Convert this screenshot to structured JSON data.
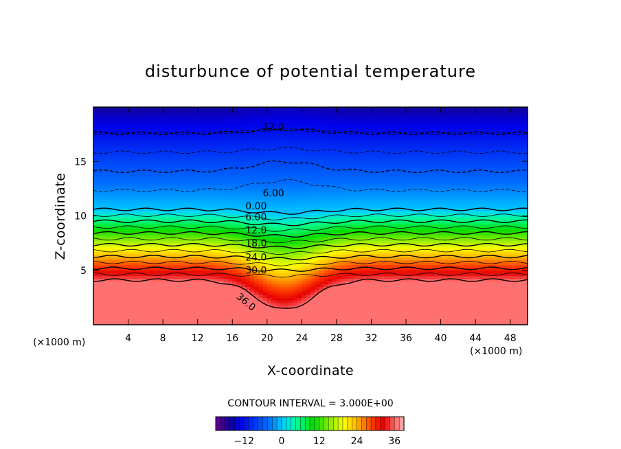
{
  "chart_data": {
    "type": "heatmap",
    "title": "disturbunce of potential temperature",
    "xlabel": "X-coordinate",
    "ylabel": "Z-coordinate",
    "x_unit": "(×1000 m)",
    "y_unit": "(×1000 m)",
    "xlim": [
      0,
      50
    ],
    "ylim": [
      0,
      20
    ],
    "x_ticks": [
      4,
      8,
      12,
      16,
      20,
      24,
      28,
      32,
      36,
      40,
      44,
      48
    ],
    "y_ticks": [
      5,
      10,
      15
    ],
    "contour_interval_text": "CONTOUR INTERVAL = 3.000E+00",
    "colorbar": {
      "min": -21,
      "max": 39,
      "ticks": [
        -12,
        0,
        12,
        24,
        36
      ],
      "colormap": "rainbow"
    },
    "contour_labels": [
      {
        "text": "12.0",
        "value": -12,
        "x": 19.5,
        "z": 17.9
      },
      {
        "text": "6.00",
        "value": -6,
        "x": 19.5,
        "z": 11.8
      },
      {
        "text": "0.00",
        "value": 0,
        "x": 17.5,
        "z": 10.6
      },
      {
        "text": "6.00",
        "value": 6,
        "x": 17.5,
        "z": 9.6
      },
      {
        "text": "12.0",
        "value": 12,
        "x": 17.5,
        "z": 8.4
      },
      {
        "text": "18.0",
        "value": 18,
        "x": 17.5,
        "z": 7.2
      },
      {
        "text": "24.0",
        "value": 24,
        "x": 17.5,
        "z": 5.9
      },
      {
        "text": "30.0",
        "value": 30,
        "x": 17.5,
        "z": 4.7
      },
      {
        "text": "36.0",
        "value": 36,
        "x": 16.4,
        "z": 2.5
      }
    ],
    "description_levels": {
      "surface_value": 36,
      "top_value": -18
    }
  }
}
